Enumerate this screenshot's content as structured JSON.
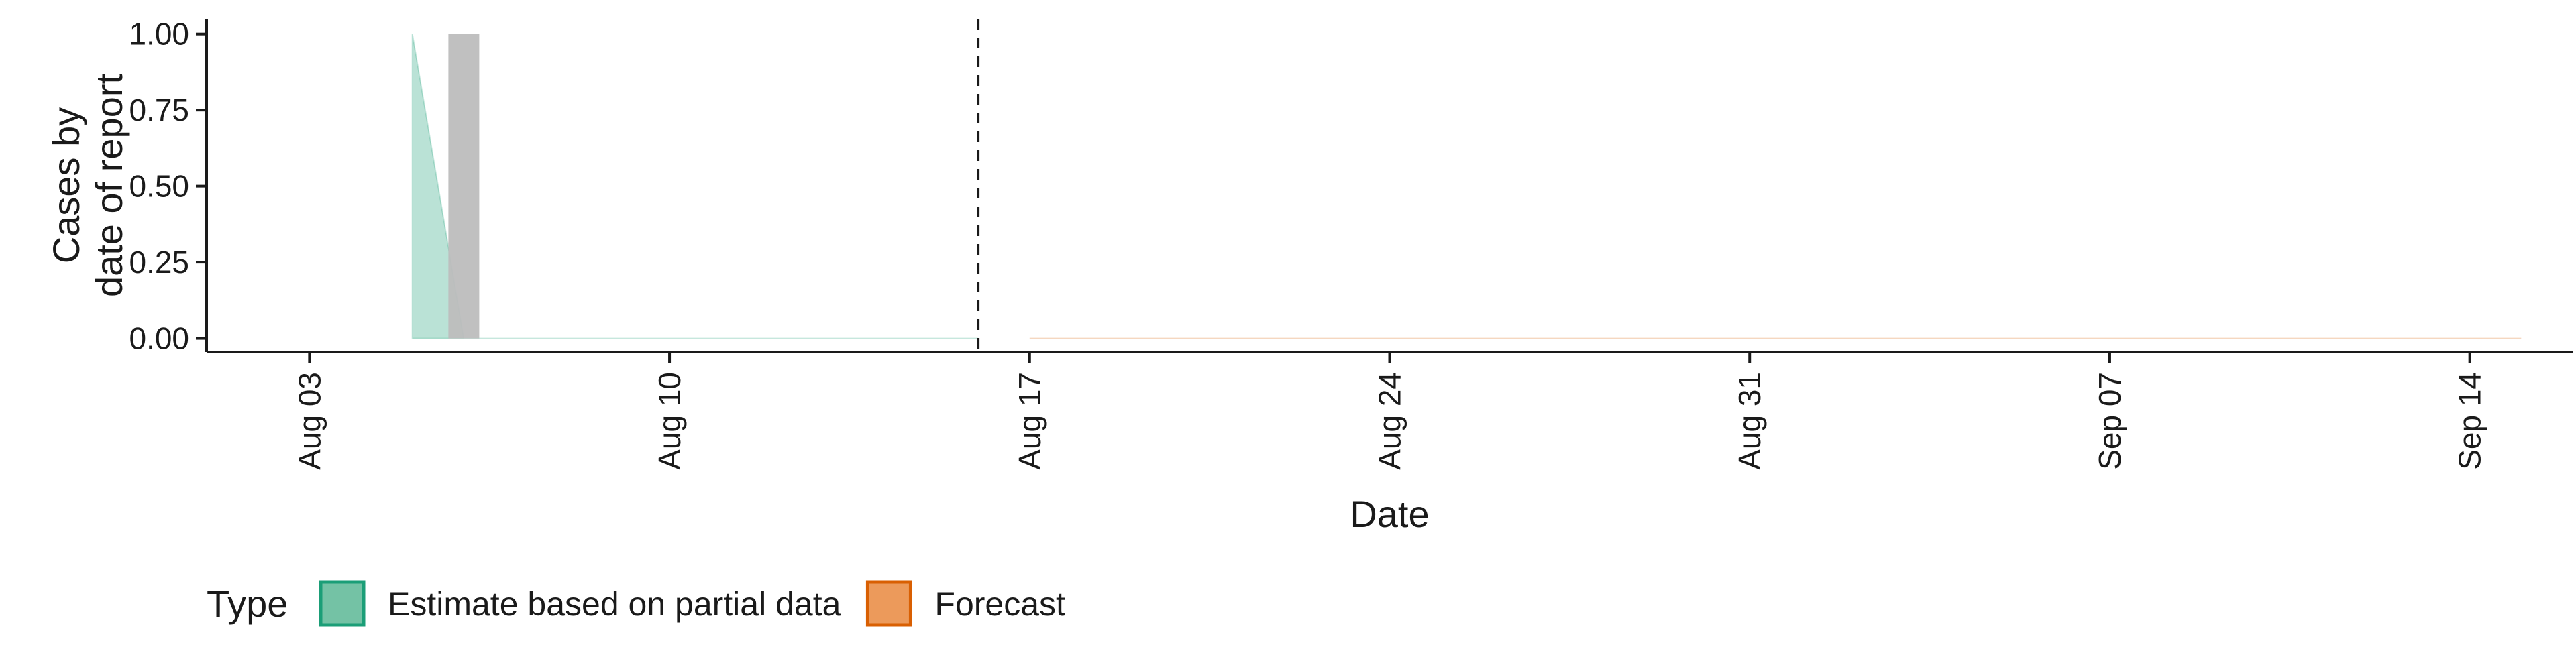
{
  "chart_data": {
    "type": "area",
    "xlabel": "Date",
    "ylabel_lines": [
      "Cases by",
      "date of report"
    ],
    "x_domain": [
      "2020-08-01",
      "2020-09-16"
    ],
    "y_domain": [
      -0.045,
      1.05
    ],
    "x_ticks": [
      {
        "date": "2020-08-03",
        "label": "Aug 03"
      },
      {
        "date": "2020-08-10",
        "label": "Aug 10"
      },
      {
        "date": "2020-08-17",
        "label": "Aug 17"
      },
      {
        "date": "2020-08-24",
        "label": "Aug 24"
      },
      {
        "date": "2020-08-31",
        "label": "Aug 31"
      },
      {
        "date": "2020-09-07",
        "label": "Sep 07"
      },
      {
        "date": "2020-09-14",
        "label": "Sep 14"
      }
    ],
    "y_ticks": [
      {
        "value": 0.0,
        "label": "0.00"
      },
      {
        "value": 0.25,
        "label": "0.25"
      },
      {
        "value": 0.5,
        "label": "0.50"
      },
      {
        "value": 0.75,
        "label": "0.75"
      },
      {
        "value": 1.0,
        "label": "1.00"
      }
    ],
    "observed_bars": [
      {
        "date": "2020-08-06",
        "value": 1.0
      }
    ],
    "estimate_band": {
      "name": "Estimate based on partial data",
      "color": "#1b9e77",
      "points": [
        {
          "date": "2020-08-05",
          "lower": 0.0,
          "upper": 1.0
        },
        {
          "date": "2020-08-06",
          "lower": 0.0,
          "upper": 0.0
        },
        {
          "date": "2020-08-16",
          "lower": 0.0,
          "upper": 0.0
        }
      ]
    },
    "forecast_band": {
      "name": "Forecast",
      "color": "#d95f02",
      "points": [
        {
          "date": "2020-08-17",
          "lower": 0.0,
          "upper": 0.0
        },
        {
          "date": "2020-09-15",
          "lower": 0.0,
          "upper": 0.0
        }
      ]
    },
    "vline_date": "2020-08-16",
    "bar_color": "#bdbdbd",
    "grid": false,
    "legend_position": "bottom-left",
    "legend": {
      "title": "Type",
      "entries": [
        {
          "label": "Estimate based on partial data",
          "fill": "#74c2a5",
          "stroke": "#1b9e77"
        },
        {
          "label": "Forecast",
          "fill": "#ec9a5b",
          "stroke": "#d95f02"
        }
      ]
    }
  }
}
